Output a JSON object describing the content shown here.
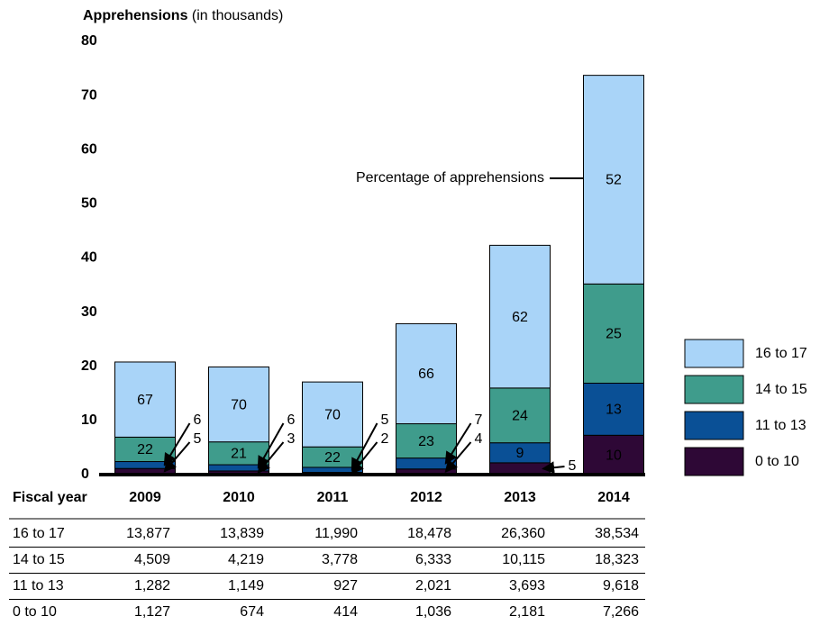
{
  "chart_data": {
    "type": "bar",
    "stacked": true,
    "title": "Apprehensions",
    "title_note": "(in thousands)",
    "category_axis_label": "Fiscal year",
    "annotation": "Percentage of apprehensions",
    "categories": [
      "2009",
      "2010",
      "2011",
      "2012",
      "2013",
      "2014"
    ],
    "series": [
      {
        "name": "0 to 10",
        "color": "#2e0836",
        "label_color": "#ffffff",
        "values": [
          1.127,
          0.674,
          0.414,
          1.036,
          2.181,
          7.266
        ],
        "percentages": [
          5,
          3,
          2,
          4,
          5,
          10
        ]
      },
      {
        "name": "11 to 13",
        "color": "#0a5096",
        "label_color": "#ffffff",
        "values": [
          1.282,
          1.149,
          0.927,
          2.021,
          3.693,
          9.618
        ],
        "percentages": [
          6,
          6,
          5,
          7,
          9,
          13
        ]
      },
      {
        "name": "14 to 15",
        "color": "#3f9c8c",
        "label_color": "#ffffff",
        "values": [
          4.509,
          4.219,
          3.778,
          6.333,
          10.115,
          18.323
        ],
        "percentages": [
          22,
          21,
          22,
          23,
          24,
          25
        ]
      },
      {
        "name": "16 to 17",
        "color": "#a9d4f8",
        "label_color": "#000000",
        "values": [
          13.877,
          13.839,
          11.99,
          18.478,
          26.36,
          38.534
        ],
        "percentages": [
          67,
          70,
          70,
          66,
          62,
          52
        ]
      }
    ],
    "ylim": [
      0,
      80
    ],
    "yticks": [
      0,
      10,
      20,
      30,
      40,
      50,
      60,
      70,
      80
    ],
    "legend": "right"
  },
  "table": {
    "rows": [
      [
        "13,877",
        "13,839",
        "11,990",
        "18,478",
        "26,360",
        "38,534"
      ],
      [
        "4,509",
        "4,219",
        "3,778",
        "6,333",
        "10,115",
        "18,323"
      ],
      [
        "1,282",
        "1,149",
        "927",
        "2,021",
        "3,693",
        "9,618"
      ],
      [
        "1,127",
        "674",
        "414",
        "1,036",
        "2,181",
        "7,266"
      ]
    ]
  }
}
